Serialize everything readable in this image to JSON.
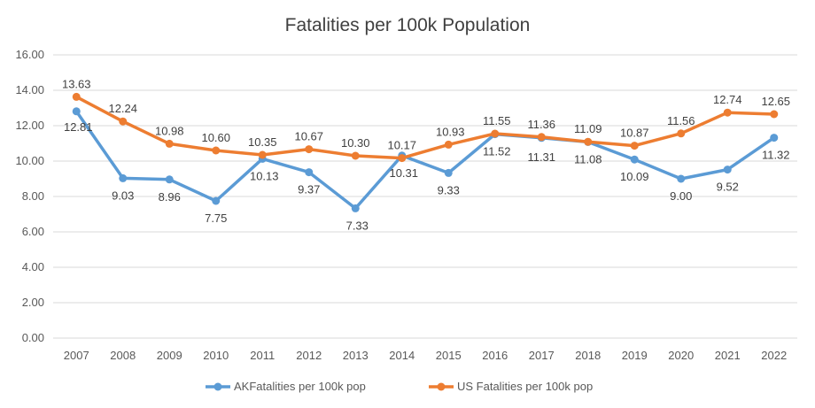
{
  "chart_data": {
    "type": "line",
    "title": "Fatalities per 100k Population",
    "xlabel": "",
    "ylabel": "",
    "categories": [
      "2007",
      "2008",
      "2009",
      "2010",
      "2011",
      "2012",
      "2013",
      "2014",
      "2015",
      "2016",
      "2017",
      "2018",
      "2019",
      "2020",
      "2021",
      "2022"
    ],
    "y_ticks": [
      "0.00",
      "2.00",
      "4.00",
      "6.00",
      "8.00",
      "10.00",
      "12.00",
      "14.00",
      "16.00"
    ],
    "ylim": [
      0,
      16
    ],
    "grid": true,
    "legend_position": "bottom",
    "series": [
      {
        "name": "AKFatalities per 100k pop",
        "color": "#5B9BD5",
        "values": [
          12.81,
          9.03,
          8.96,
          7.75,
          10.13,
          9.37,
          7.33,
          10.31,
          9.33,
          11.52,
          11.31,
          11.08,
          10.09,
          9.0,
          9.52,
          11.32
        ],
        "labels": [
          "12.81",
          "9.03",
          "8.96",
          "7.75",
          "10.13",
          "9.37",
          "7.33",
          "10.31",
          "9.33",
          "11.52",
          "11.31",
          "11.08",
          "10.09",
          "9.00",
          "9.52",
          "11.32"
        ]
      },
      {
        "name": "US Fatalities per 100k pop",
        "color": "#ED7D31",
        "values": [
          13.63,
          12.24,
          10.98,
          10.6,
          10.35,
          10.67,
          10.3,
          10.17,
          10.93,
          11.55,
          11.36,
          11.09,
          10.87,
          11.56,
          12.74,
          12.65
        ],
        "labels": [
          "13.63",
          "12.24",
          "10.98",
          "10.60",
          "10.35",
          "10.67",
          "10.30",
          "10.17",
          "10.93",
          "11.55",
          "11.36",
          "11.09",
          "10.87",
          "11.56",
          "12.74",
          "12.65"
        ]
      }
    ]
  }
}
